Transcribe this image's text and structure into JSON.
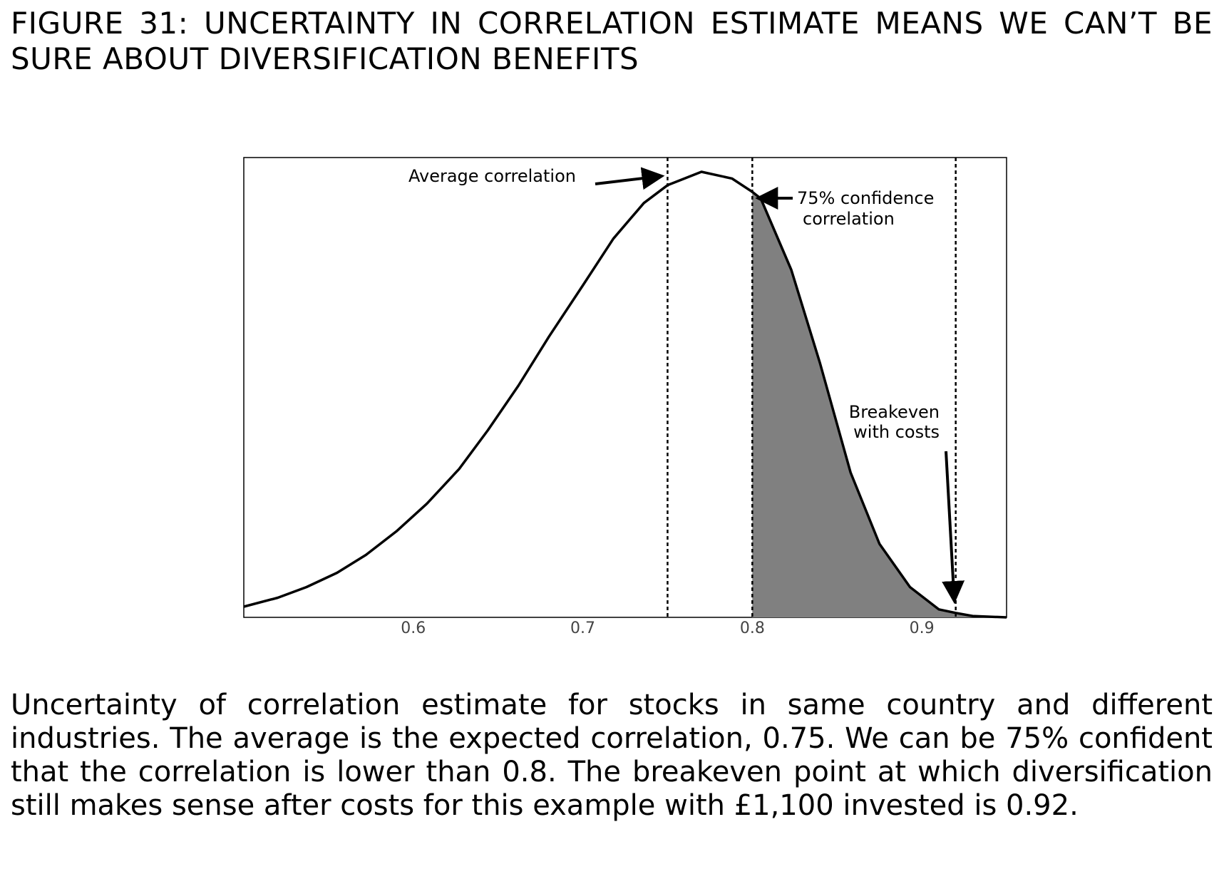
{
  "figure": {
    "title": "FIGURE 31: UNCERTAINTY IN CORRELATION ESTIMATE MEANS WE CAN’T BE SURE ABOUT DIVERSIFICATION BENEFITS",
    "caption": "Uncertainty of correlation estimate for stocks in same country and different industries. The average is the expected correlation, 0.75. We can be 75% confident that the correlation is lower than 0.8. The breakeven point at which diversification still makes sense after costs for this example with £1,100 invested is 0.92."
  },
  "chart_data": {
    "type": "line",
    "title": "",
    "xlabel": "",
    "ylabel": "",
    "xlim": [
      0.5,
      0.95
    ],
    "ylim": [
      0,
      1
    ],
    "xticks": [
      0.6,
      0.7,
      0.8,
      0.9
    ],
    "xtick_labels": [
      "0.6",
      "0.7",
      "0.8",
      "0.9"
    ],
    "yticks": [],
    "grid": false,
    "legend": "none",
    "series": [
      {
        "x": [
          0.5,
          0.52,
          0.537,
          0.555,
          0.572,
          0.59,
          0.608,
          0.627,
          0.644,
          0.662,
          0.68,
          0.7,
          0.718,
          0.736,
          0.75,
          0.77,
          0.788,
          0.8,
          0.805,
          0.823,
          0.84,
          0.858,
          0.875,
          0.893,
          0.91,
          0.92,
          0.93,
          0.95
        ],
        "y": [
          0.024,
          0.044,
          0.068,
          0.1,
          0.14,
          0.193,
          0.255,
          0.333,
          0.42,
          0.52,
          0.63,
          0.745,
          0.85,
          0.93,
          0.97,
          1.0,
          0.985,
          0.955,
          0.94,
          0.78,
          0.57,
          0.325,
          0.165,
          0.068,
          0.018,
          0.01,
          0.003,
          0.0
        ]
      }
    ],
    "shaded_region": {
      "from": 0.8,
      "to": 0.95,
      "color": "#808080"
    },
    "reference_lines": [
      {
        "x": 0.75,
        "style": "dotted"
      },
      {
        "x": 0.8,
        "style": "dotted"
      },
      {
        "x": 0.92,
        "style": "dotted"
      }
    ],
    "annotations": [
      {
        "lines": [
          "Average correlation"
        ],
        "target_x": 0.75
      },
      {
        "lines": [
          "75% confidence",
          "correlation"
        ],
        "target_x": 0.8
      },
      {
        "lines": [
          "Breakeven",
          "with costs"
        ],
        "target_x": 0.92
      }
    ],
    "colors": {
      "line": "#000000",
      "fill": "#808080",
      "tick_label": "#444444"
    }
  }
}
